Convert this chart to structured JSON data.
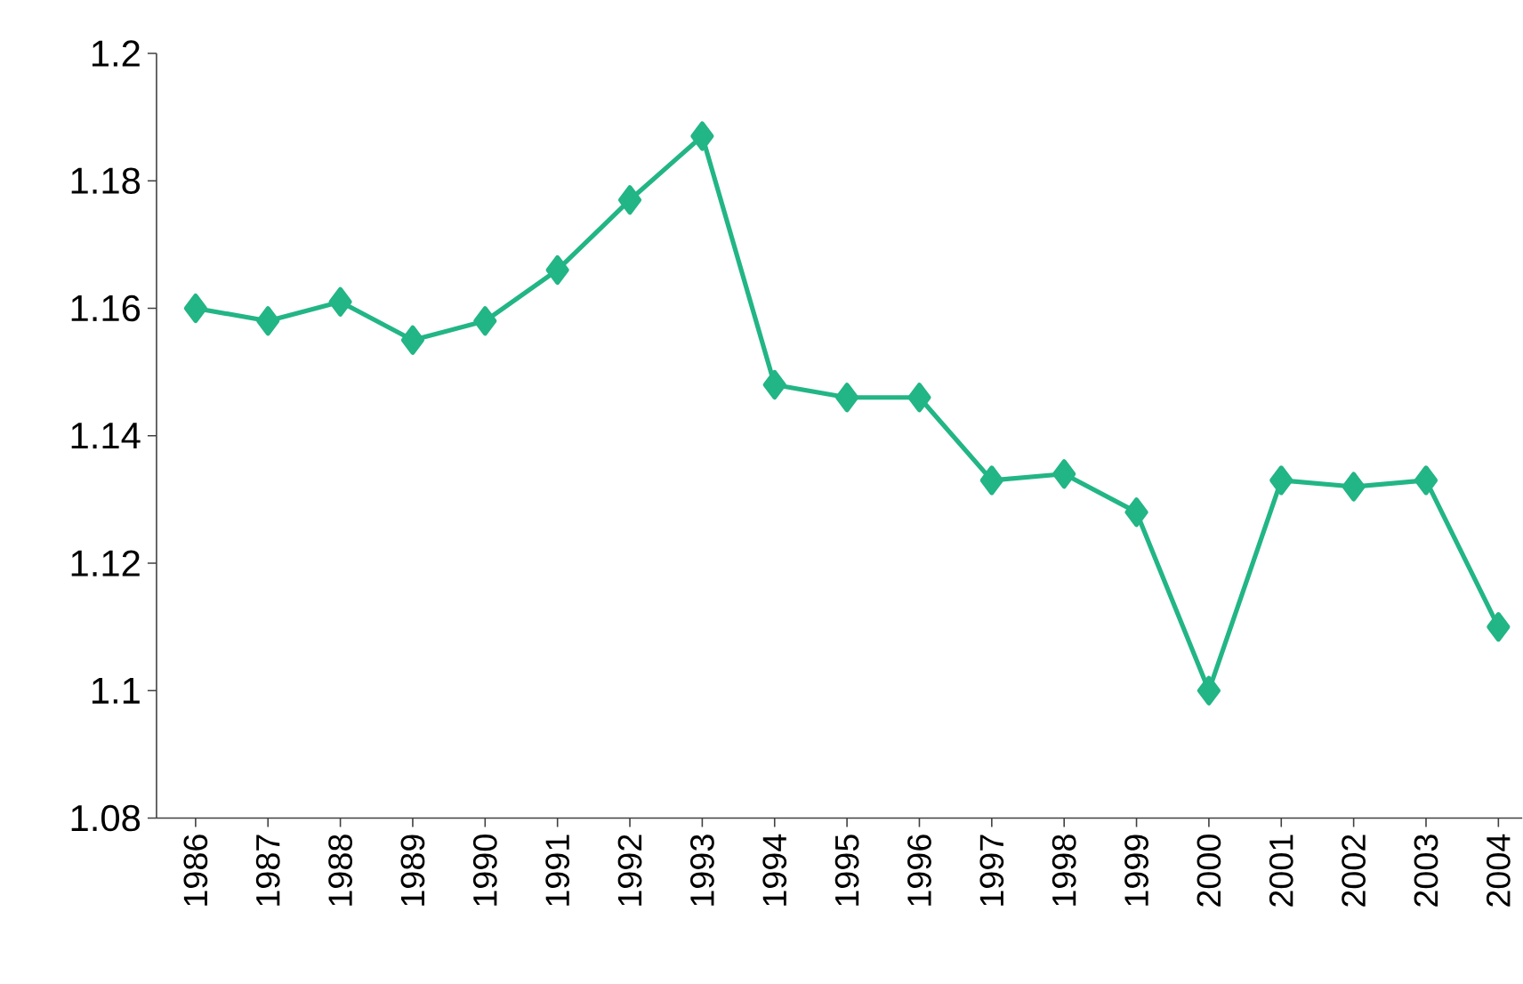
{
  "chart_data": {
    "type": "line",
    "categories": [
      "1986",
      "1987",
      "1988",
      "1989",
      "1990",
      "1991",
      "1992",
      "1993",
      "1994",
      "1995",
      "1996",
      "1997",
      "1998",
      "1999",
      "2000",
      "2001",
      "2002",
      "2003",
      "2004"
    ],
    "series": [
      {
        "color": "#22b585",
        "values": [
          1.16,
          1.158,
          1.161,
          1.155,
          1.158,
          1.166,
          1.177,
          1.187,
          1.148,
          1.146,
          1.146,
          1.133,
          1.134,
          1.128,
          1.1,
          1.133,
          1.132,
          1.133,
          1.11
        ]
      }
    ],
    "ylim": [
      1.08,
      1.2
    ],
    "yticks": [
      1.08,
      1.1,
      1.12,
      1.14,
      1.16,
      1.18,
      1.2
    ],
    "marker": "diamond",
    "line_style": "solid"
  }
}
